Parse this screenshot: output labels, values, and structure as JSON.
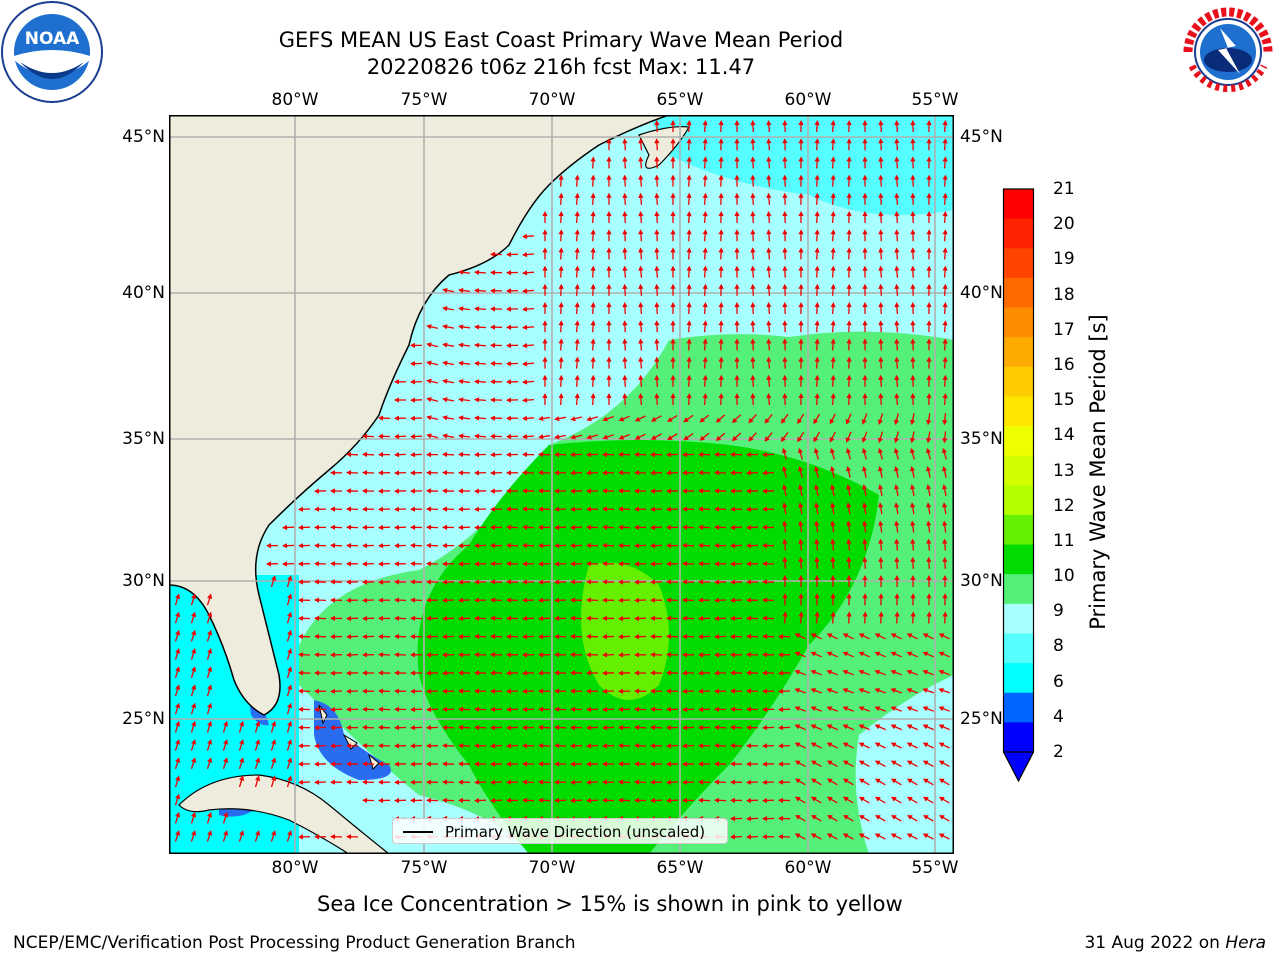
{
  "title_line1": "GEFS MEAN US East Coast Primary Wave Mean Period",
  "title_line2": "20220826 t06z 216h fcst   Max: 11.47",
  "logos": {
    "left": "NOAA",
    "right": "NATIONAL WEATHER SERVICE",
    "left_small": "NATIONAL OCEANIC AND ATMOSPHERIC ADMINISTRATION · U.S. DEPARTMENT OF COMMERCE"
  },
  "lon_ticks": [
    "80°W",
    "75°W",
    "70°W",
    "65°W",
    "60°W",
    "55°W"
  ],
  "lat_ticks": [
    "45°N",
    "40°N",
    "35°N",
    "30°N",
    "25°N"
  ],
  "legend_label": "Primary Wave Direction (unscaled)",
  "colorbar": {
    "label": "Primary Wave Mean Period [s]",
    "ticks": [
      "21",
      "20",
      "19",
      "18",
      "17",
      "16",
      "15",
      "14",
      "13",
      "12",
      "11",
      "10",
      "9",
      "8",
      "6",
      "4",
      "2"
    ],
    "colors": [
      "#ff0000",
      "#ff2200",
      "#ff4400",
      "#ff6a00",
      "#ff8c00",
      "#ffaa00",
      "#ffcc00",
      "#ffe600",
      "#f0ff00",
      "#d2ff00",
      "#b4ff00",
      "#64f000",
      "#00dc00",
      "#55f07a",
      "#a8ffff",
      "#55ffff",
      "#00ffff",
      "#0064ff",
      "#0000ff"
    ]
  },
  "colors": {
    "land": "#eeecdc",
    "gridline": "#b0b0b0",
    "arrow": "#ee0000",
    "coast": "#000000"
  },
  "subtitle": "Sea Ice Concentration > 15% is shown in pink to yellow",
  "footer_left": "NCEP/EMC/Verification Post Processing Product Generation Branch",
  "footer_right_date": "31 Aug 2022 on ",
  "footer_right_machine": "Hera"
}
